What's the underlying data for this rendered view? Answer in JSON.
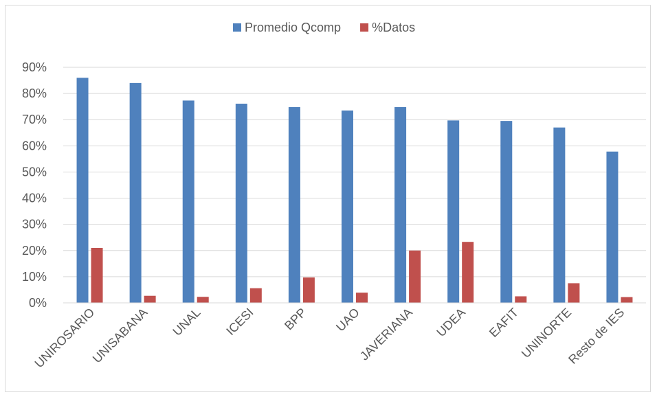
{
  "chart_data": {
    "type": "bar",
    "title": "",
    "xlabel": "",
    "ylabel": "",
    "categories": [
      "UNIROSARIO",
      "UNISABANA",
      "UNAL",
      "ICESI",
      "BPP",
      "UAO",
      "JAVERIANA",
      "UDEA",
      "EAFIT",
      "UNINORTE",
      "Resto de IES"
    ],
    "series": [
      {
        "name": "Promedio Qcomp",
        "color": "#4f81bd",
        "values": [
          0.86,
          0.84,
          0.773,
          0.761,
          0.748,
          0.735,
          0.748,
          0.697,
          0.695,
          0.67,
          0.578
        ]
      },
      {
        "name": "%Datos",
        "color": "#c0504d",
        "values": [
          0.21,
          0.027,
          0.023,
          0.056,
          0.097,
          0.039,
          0.2,
          0.233,
          0.025,
          0.075,
          0.022
        ]
      }
    ],
    "ylim": [
      0,
      0.9
    ],
    "yticks": [
      "0%",
      "10%",
      "20%",
      "30%",
      "40%",
      "50%",
      "60%",
      "70%",
      "80%",
      "90%"
    ],
    "grid": true,
    "legend_position": "top"
  }
}
